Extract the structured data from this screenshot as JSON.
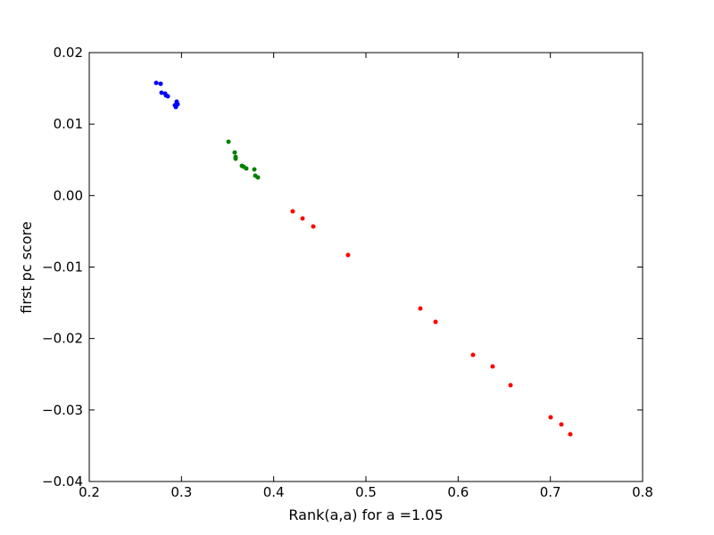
{
  "chart_data": {
    "type": "scatter",
    "xlabel": "Rank(a,a) for a =1.05",
    "ylabel": "first pc score",
    "xlim": [
      0.2,
      0.8
    ],
    "ylim": [
      -0.04,
      0.02
    ],
    "xticks": [
      0.2,
      0.3,
      0.4,
      0.5,
      0.6,
      0.7,
      0.8
    ],
    "yticks": [
      {
        "value": -0.04,
        "label": "−0.04"
      },
      {
        "value": -0.03,
        "label": "−0.03"
      },
      {
        "value": -0.02,
        "label": "−0.02"
      },
      {
        "value": -0.01,
        "label": "−0.01"
      },
      {
        "value": 0,
        "label": "0.00"
      },
      0.01,
      0.02
    ],
    "series": [
      {
        "color": "#0000ff",
        "x": [
          0.2726,
          0.2774,
          0.2784,
          0.2823,
          0.2832,
          0.2852,
          0.2929,
          0.2958,
          0.2939,
          0.2948
        ],
        "values": [
          0.01576,
          0.01564,
          0.01439,
          0.01426,
          0.01401,
          0.01389,
          0.01264,
          0.01277,
          0.01239,
          0.01314
        ]
      },
      {
        "color": "#008000",
        "x": [
          0.351,
          0.3577,
          0.3587,
          0.3587,
          0.3655,
          0.3674,
          0.3703,
          0.379,
          0.38,
          0.3829
        ],
        "values": [
          0.00753,
          0.00603,
          0.00541,
          0.00516,
          0.00416,
          0.00403,
          0.00378,
          0.00366,
          0.00279,
          0.00254
        ]
      },
      {
        "color": "#ff0000",
        "x": [
          0.4206,
          0.4313,
          0.4429,
          0.4806,
          0.559,
          0.5755,
          0.6161,
          0.6374,
          0.6568,
          0.7003,
          0.7119,
          0.7216
        ],
        "values": [
          -0.0022,
          -0.0032,
          -0.00432,
          -0.00832,
          -0.0158,
          -0.01767,
          -0.02229,
          -0.02391,
          -0.02653,
          -0.03102,
          -0.03202,
          -0.03339
        ]
      }
    ]
  }
}
